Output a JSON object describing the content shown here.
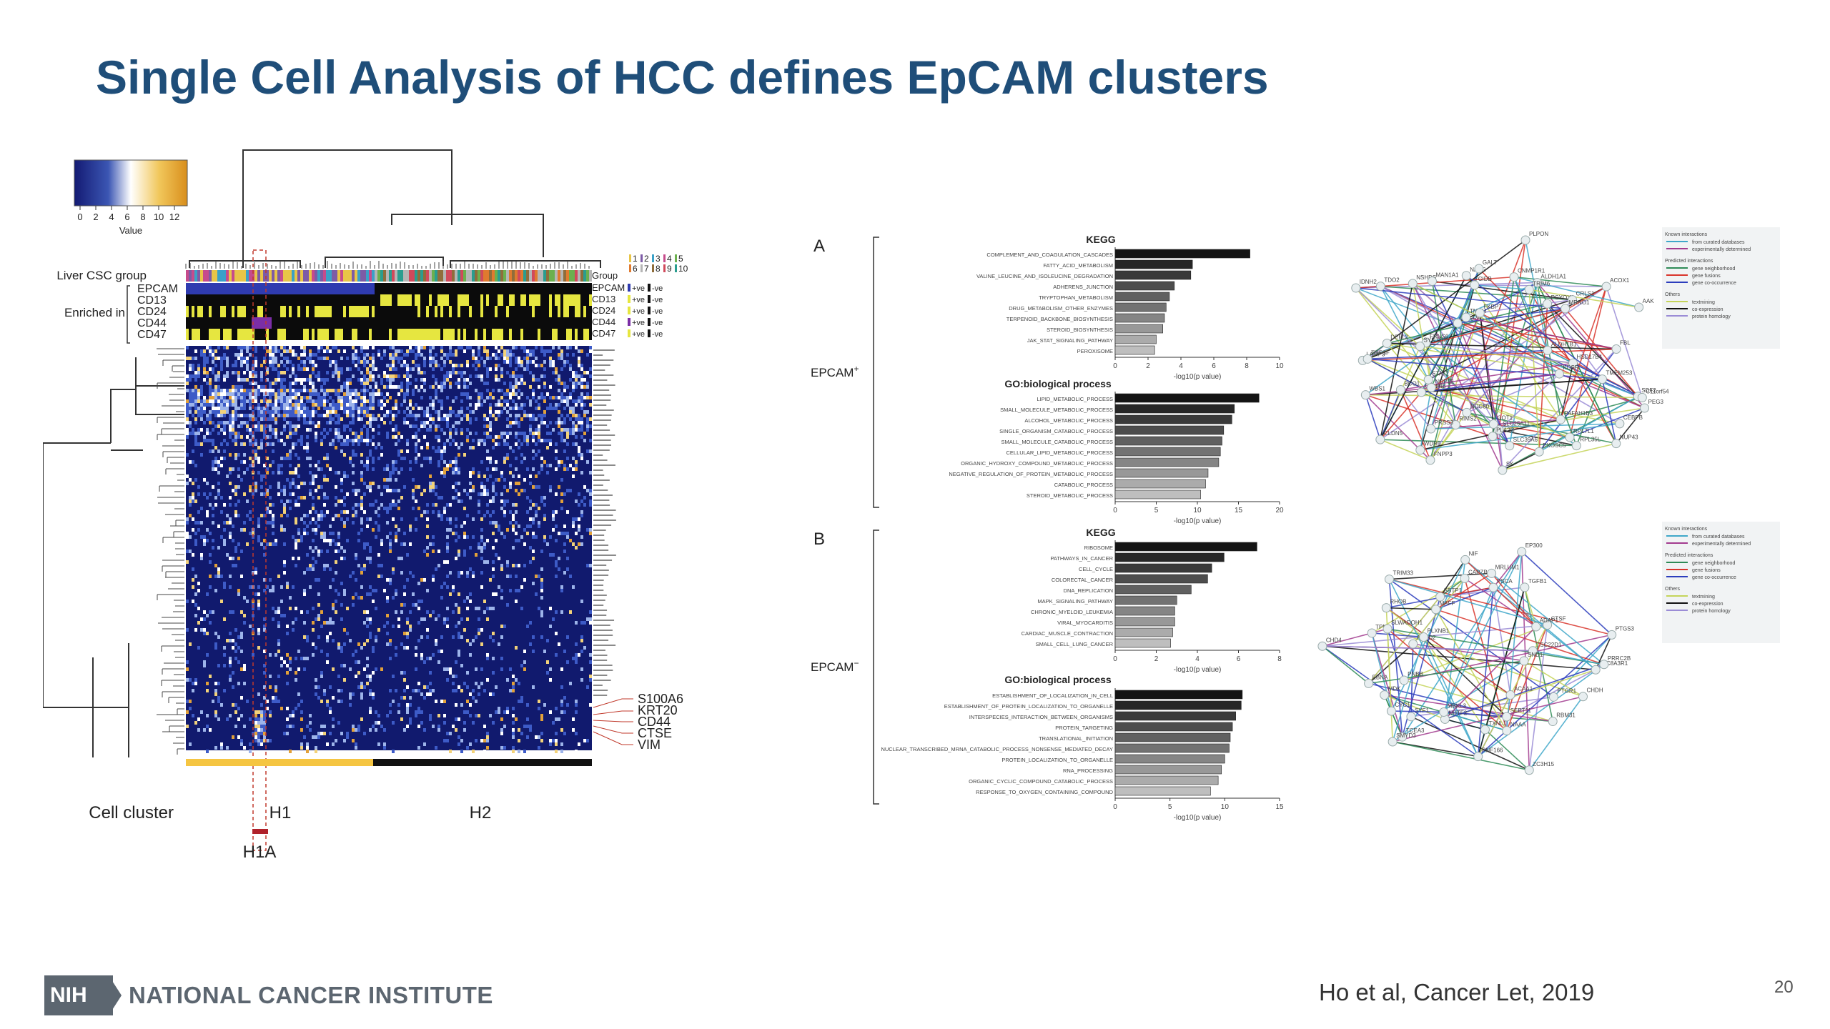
{
  "slide": {
    "title": "Single Cell Analysis of HCC defines EpCAM clusters",
    "citation": "Ho et al, Cancer Let, 2019",
    "page_number": "20"
  },
  "footer": {
    "logo_text": "NIH",
    "institute": "NATIONAL CANCER INSTITUTE"
  },
  "colors": {
    "title": "#1f4e79",
    "heat_low": "#1a237e",
    "heat_mid": "#ffffff",
    "heat_high": "#d98e1c",
    "h1_bar": "#f5c542",
    "h1a_bar": "#c0392b"
  },
  "heatmap": {
    "legend_ticks": [
      "0",
      "2",
      "4",
      "6",
      "8",
      "10",
      "12"
    ],
    "legend_title": "Value",
    "row_labels": {
      "group": "Liver CSC group",
      "enriched": "Enriched in",
      "markers": [
        "EPCAM",
        "CD13",
        "CD24",
        "CD44",
        "CD47"
      ]
    },
    "group_label": "Group",
    "group_numbers": [
      "1",
      "2",
      "3",
      "4",
      "5",
      "6",
      "7",
      "8",
      "9",
      "10"
    ],
    "marker_legend": [
      {
        "name": "EPCAM",
        "pos": "+ve",
        "neg": "-ve"
      },
      {
        "name": "CD13",
        "pos": "+ve",
        "neg": "-ve"
      },
      {
        "name": "CD24",
        "pos": "+ve",
        "neg": "-ve"
      },
      {
        "name": "CD44",
        "pos": "+ve",
        "neg": "-ve"
      },
      {
        "name": "CD47",
        "pos": "+ve",
        "neg": "-ve"
      }
    ],
    "highlight_genes": [
      "S100A6",
      "KRT20",
      "CD44",
      "CTSE",
      "VIM"
    ],
    "cell_cluster_label": "Cell cluster",
    "clusters": [
      "H1",
      "H2"
    ],
    "subcluster": "H1A"
  },
  "panels": {
    "a": {
      "letter": "A",
      "group": "EPCAM",
      "sign": "+",
      "kegg_title": "KEGG",
      "kegg": {
        "terms": [
          "COMPLEMENT_AND_COAGULATION_CASCADES",
          "FATTY_ACID_METABOLISM",
          "VALINE_LEUCINE_AND_ISOLEUCINE_DEGRADATION",
          "ADHERENS_JUNCTION",
          "TRYPTOPHAN_METABOLISM",
          "DRUG_METABOLISM_OTHER_ENZYMES",
          "TERPENOID_BACKBONE_BIOSYNTHESIS",
          "STEROID_BIOSYNTHESIS",
          "JAK_STAT_SIGNALING_PATHWAY",
          "PEROXISOME"
        ],
        "values": [
          8.2,
          4.7,
          4.6,
          3.6,
          3.3,
          3.1,
          3.0,
          2.9,
          2.5,
          2.4
        ],
        "ticks": [
          "0",
          "2",
          "4",
          "6",
          "8",
          "10"
        ],
        "xmax": 10,
        "xlabel": "-log10(p value)"
      },
      "go_title": "GO:biological process",
      "go": {
        "terms": [
          "LIPID_METABOLIC_PROCESS",
          "SMALL_MOLECULE_METABOLIC_PROCESS",
          "ALCOHOL_METABOLIC_PROCESS",
          "SINGLE_ORGANISM_CATABOLIC_PROCESS",
          "SMALL_MOLECULE_CATABOLIC_PROCESS",
          "CELLULAR_LIPID_METABOLIC_PROCESS",
          "ORGANIC_HYDROXY_COMPOUND_METABOLIC_PROCESS",
          "NEGATIVE_REGULATION_OF_PROTEIN_METABOLIC_PROCESS",
          "CATABOLIC_PROCESS",
          "STEROID_METABOLIC_PROCESS"
        ],
        "values": [
          17.5,
          14.5,
          14.2,
          13.2,
          13.0,
          12.8,
          12.6,
          11.3,
          11.0,
          10.4
        ],
        "ticks": [
          "0",
          "5",
          "10",
          "15",
          "20"
        ],
        "xmax": 20,
        "xlabel": "-log10(p value)"
      }
    },
    "b": {
      "letter": "B",
      "group": "EPCAM",
      "sign": "−",
      "kegg_title": "KEGG",
      "kegg": {
        "terms": [
          "RIBOSOME",
          "PATHWAYS_IN_CANCER",
          "CELL_CYCLE",
          "COLORECTAL_CANCER",
          "DNA_REPLICATION",
          "MAPK_SIGNALING_PATHWAY",
          "CHRONIC_MYELOID_LEUKEMIA",
          "VIRAL_MYOCARDITIS",
          "CARDIAC_MUSCLE_CONTRACTION",
          "SMALL_CELL_LUNG_CANCER"
        ],
        "values": [
          6.9,
          5.3,
          4.7,
          4.5,
          3.7,
          3.0,
          2.9,
          2.9,
          2.8,
          2.7
        ],
        "ticks": [
          "0",
          "2",
          "4",
          "6",
          "8"
        ],
        "xmax": 8,
        "xlabel": "-log10(p value)"
      },
      "go_title": "GO:biological process",
      "go": {
        "terms": [
          "ESTABLISHMENT_OF_LOCALIZATION_IN_CELL",
          "ESTABLISHMENT_OF_PROTEIN_LOCALIZATION_TO_ORGANELLE",
          "INTERSPECIES_INTERACTION_BETWEEN_ORGANISMS",
          "PROTEIN_TARGETING",
          "TRANSLATIONAL_INITIATION",
          "NUCLEAR_TRANSCRIBED_MRNA_CATABOLIC_PROCESS_NONSENSE_MEDIATED_DECAY",
          "PROTEIN_LOCALIZATION_TO_ORGANELLE",
          "RNA_PROCESSING",
          "ORGANIC_CYCLIC_COMPOUND_CATABOLIC_PROCESS",
          "RESPONSE_TO_OXYGEN_CONTAINING_COMPOUND"
        ],
        "values": [
          11.6,
          11.5,
          11.0,
          10.7,
          10.5,
          10.4,
          10.0,
          9.7,
          9.4,
          8.7
        ],
        "ticks": [
          "0",
          "5",
          "10",
          "15"
        ],
        "xmax": 15,
        "xlabel": "-log10(p value)"
      }
    }
  },
  "networks": {
    "top_nodes": [
      "SDF2",
      "C11orf54",
      "PEG3",
      "CEBPB",
      "PAFAH1B3",
      "NUP43",
      "RPL7L1",
      "RPL35L",
      "EXOSC5",
      "SLC39A6",
      "SLC25A11",
      "GOT1",
      "SK",
      "PLA2G",
      "NDC80",
      "FNPP3",
      "RIMS2",
      "WDR6",
      "CLDN5",
      "PRSS3",
      "GPNMB",
      "BCO1",
      "NOP12",
      "STAT2",
      "WBS1",
      "LAMP3",
      "TNFSF",
      "FRNS6",
      "DEFL2",
      "SYNJ2BP",
      "IDNH2",
      "TDO2",
      "ABCD3",
      "NSHDS",
      "TMEM",
      "MAN1A1",
      "CIDB",
      "NAPG",
      "FKBP7",
      "GALT",
      "CNMP1R1",
      "PLPON",
      "ALDH1A1",
      "PCYOX1",
      "TRIM6",
      "CRLS1",
      "MRNO1",
      "ACOX1",
      "AAK",
      "ALDH1B1",
      "FBL",
      "HSD17B4",
      "TMEM253",
      "KDSR"
    ],
    "bottom_nodes": [
      "SLC8A3R1",
      "PTGR1",
      "CHDH",
      "ACAA1",
      "RBM31",
      "ZC3H15",
      "SEPT11",
      "NAAA",
      "TXNL1",
      "RNF166",
      "NUTF2",
      "MBKL3",
      "TCEA3",
      "SYF1",
      "SMYD3",
      "CYC1",
      "PNBB",
      "MDK",
      "EBNA",
      "CHD4",
      "TPM1",
      "ABHD2",
      "PLXNB1",
      "SLWADOH1",
      "RHOB",
      "TRIM33",
      "SSTP1",
      "MAFF",
      "CAPZB",
      "NIF",
      "PSCA",
      "MRLUM1",
      "EP300",
      "TGFB1",
      "CTSF",
      "ADAP1",
      "PTGS3",
      "TSC22D1",
      "SND1",
      "PRRC2B"
    ],
    "legend_top": {
      "known_title": "Known interactions",
      "known": [
        "from curated databases",
        "experimentally determined"
      ],
      "predicted_title": "Predicted interactions",
      "predicted": [
        "gene neighborhood",
        "gene fusions",
        "gene co-occurrence"
      ],
      "others_title": "Others",
      "others": [
        "textmining",
        "co-expression",
        "protein homology"
      ]
    },
    "legend_colors": [
      "#3fa7c9",
      "#a23b8f",
      "#2e8b57",
      "#d9342b",
      "#2c3dbd",
      "#c5d45a",
      "#111111",
      "#9b8cd6"
    ]
  }
}
